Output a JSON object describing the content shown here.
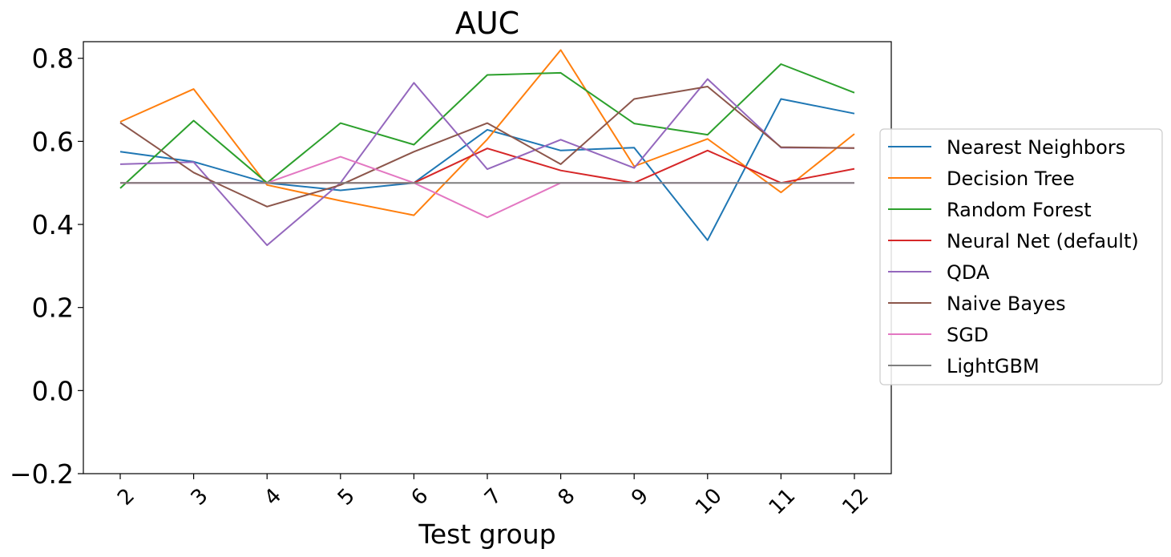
{
  "chart_data": {
    "type": "line",
    "title": "AUC",
    "xlabel": "Test group",
    "ylabel": "",
    "categories": [
      "2",
      "3",
      "4",
      "5",
      "6",
      "7",
      "8",
      "9",
      "10",
      "11",
      "12"
    ],
    "ylim": [
      -0.2,
      0.84
    ],
    "yticks": [
      "−0.2",
      "0.0",
      "0.2",
      "0.4",
      "0.6",
      "0.8"
    ],
    "ytick_values": [
      -0.2,
      0.0,
      0.2,
      0.4,
      0.6,
      0.8
    ],
    "grid": false,
    "legend_position": "center-right outside",
    "series": [
      {
        "name": "Nearest Neighbors",
        "color": "#1f77b4",
        "values": [
          0.575,
          0.551,
          0.5,
          0.482,
          0.5,
          0.628,
          0.578,
          0.585,
          0.362,
          0.702,
          0.667
        ]
      },
      {
        "name": "Decision Tree",
        "color": "#ff7f0e",
        "values": [
          0.647,
          0.726,
          0.495,
          0.457,
          0.422,
          0.605,
          0.82,
          0.54,
          0.606,
          0.477,
          0.618
        ]
      },
      {
        "name": "Random Forest",
        "color": "#2ca02c",
        "values": [
          0.487,
          0.65,
          0.5,
          0.644,
          0.592,
          0.76,
          0.765,
          0.643,
          0.616,
          0.786,
          0.717
        ]
      },
      {
        "name": "Neural Net (default)",
        "color": "#d62728",
        "values": [
          0.5,
          0.5,
          0.5,
          0.5,
          0.5,
          0.583,
          0.53,
          0.5,
          0.578,
          0.5,
          0.534
        ]
      },
      {
        "name": "QDA",
        "color": "#9467bd",
        "values": [
          0.545,
          0.55,
          0.35,
          0.5,
          0.741,
          0.533,
          0.604,
          0.536,
          0.75,
          0.585,
          0.584
        ]
      },
      {
        "name": "Naive Bayes",
        "color": "#8c564b",
        "values": [
          0.645,
          0.525,
          0.443,
          0.495,
          0.575,
          0.644,
          0.545,
          0.702,
          0.732,
          0.586,
          0.584
        ]
      },
      {
        "name": "SGD",
        "color": "#e377c2",
        "values": [
          0.5,
          0.5,
          0.5,
          0.563,
          0.5,
          0.417,
          0.5,
          0.5,
          0.5,
          0.5,
          0.5
        ]
      },
      {
        "name": "LightGBM",
        "color": "#7f7f7f",
        "values": [
          0.5,
          0.5,
          0.5,
          0.5,
          0.5,
          0.5,
          0.5,
          0.5,
          0.5,
          0.5,
          0.5
        ]
      }
    ]
  }
}
